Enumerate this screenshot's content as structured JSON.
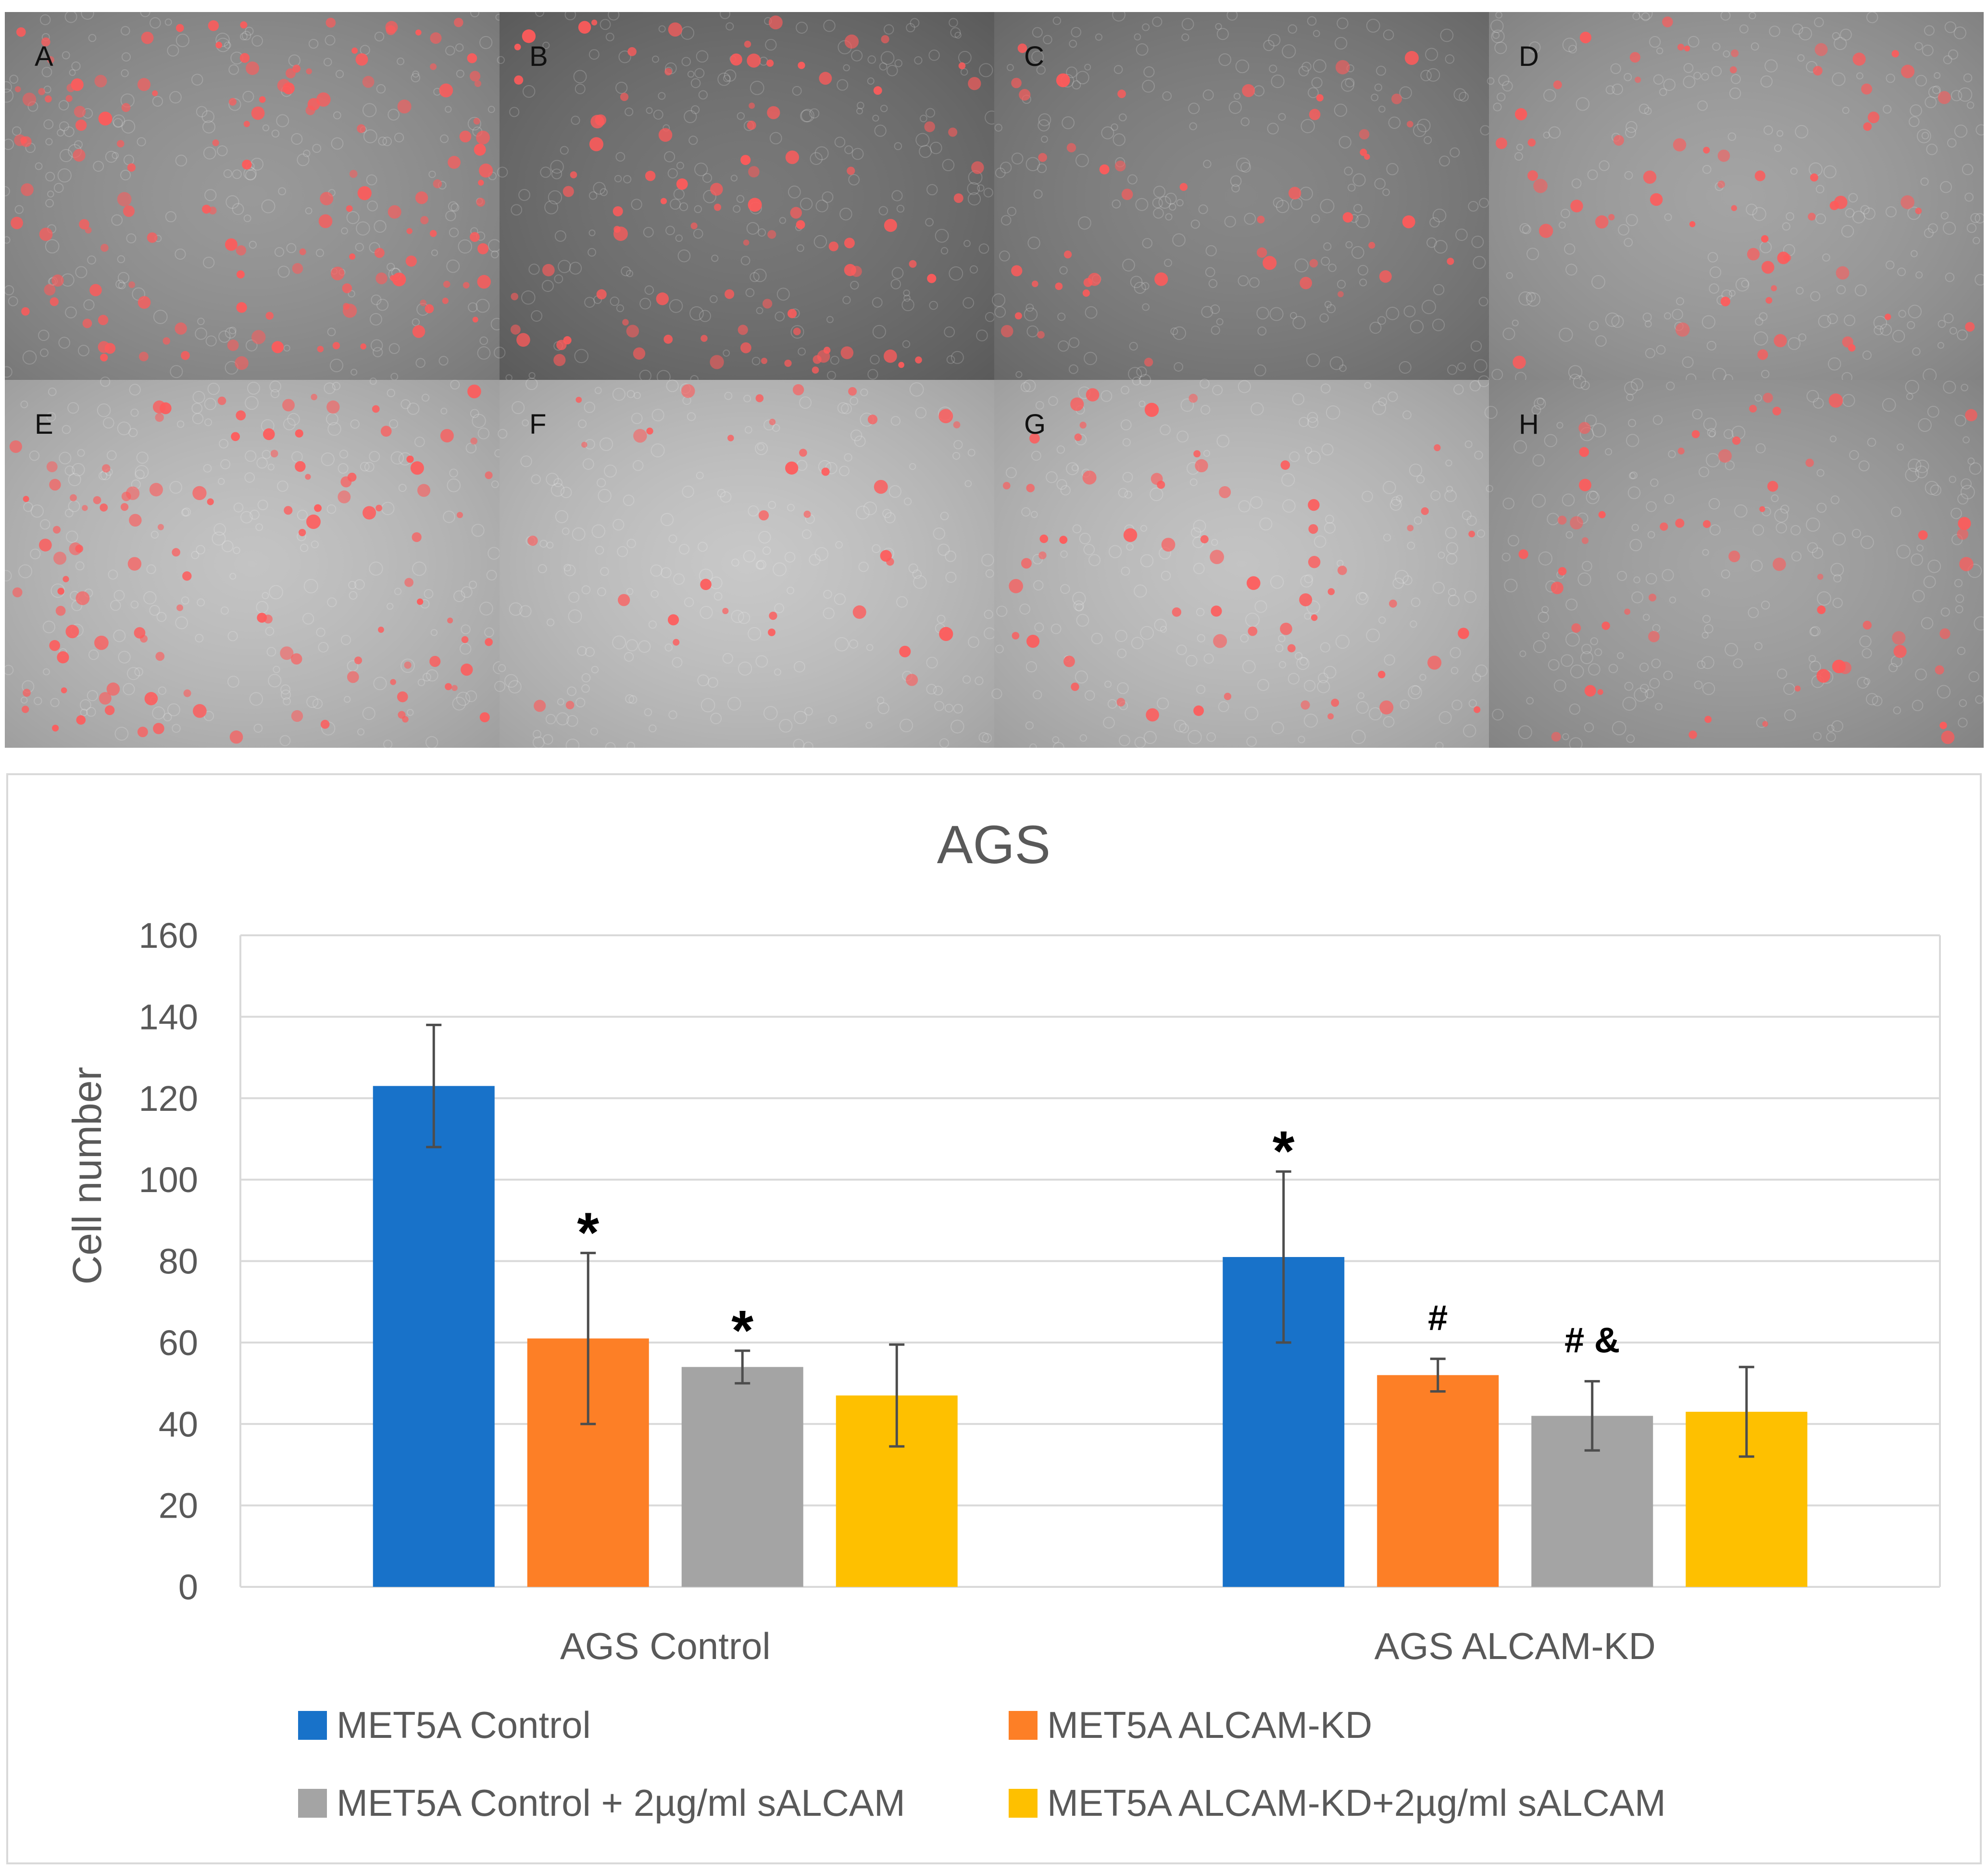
{
  "panels": {
    "labels": [
      "A",
      "B",
      "C",
      "D",
      "E",
      "F",
      "G",
      "H"
    ],
    "tones": [
      "#8e8e8e",
      "#6a6a6a",
      "#7a7a7a",
      "#9a9a9a",
      "#bdbdbd",
      "#c2c2c2",
      "#bdbdbd",
      "#9c9c9c"
    ],
    "cell_density": [
      140,
      90,
      45,
      60,
      110,
      35,
      60,
      55
    ],
    "cell_color": "#ff5a5a"
  },
  "chart_data": {
    "type": "bar",
    "title": "AGS",
    "xlabel": "",
    "ylabel": "Cell number",
    "ylim": [
      0,
      160
    ],
    "yticks": [
      0,
      20,
      40,
      60,
      80,
      100,
      120,
      140,
      160
    ],
    "grid": true,
    "legend_position": "bottom",
    "categories": [
      "AGS Control",
      "AGS ALCAM-KD"
    ],
    "series": [
      {
        "name": "MET5A Control",
        "color": "#1872c9",
        "values": [
          123,
          81
        ],
        "errors": [
          15,
          21
        ],
        "annotations": [
          "",
          "*"
        ]
      },
      {
        "name": "MET5A ALCAM-KD",
        "color": "#fd7f26",
        "values": [
          61,
          52
        ],
        "errors": [
          21,
          4
        ],
        "annotations": [
          "*",
          "#"
        ]
      },
      {
        "name": "MET5A Control + 2µg/ml sALCAM",
        "color": "#a4a4a4",
        "values": [
          54,
          42
        ],
        "errors": [
          4,
          8.5
        ],
        "annotations": [
          "*",
          "# &"
        ]
      },
      {
        "name": "MET5A ALCAM-KD+2µg/ml sALCAM",
        "color": "#fec000",
        "values": [
          47,
          43
        ],
        "errors": [
          12.5,
          11
        ],
        "annotations": [
          "",
          ""
        ]
      }
    ]
  }
}
